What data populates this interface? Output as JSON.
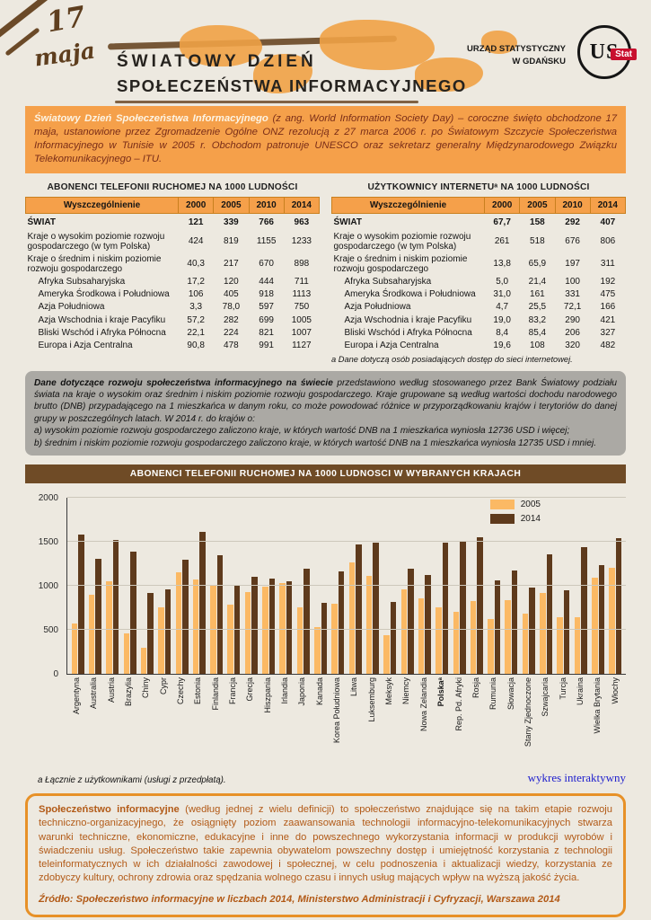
{
  "colors": {
    "accent_orange": "#F5A04A",
    "title_bar_brown": "#6F4B26",
    "bar_2005": "#FBB964",
    "bar_2014": "#5E3A1C",
    "note_gray": "#ABA9A4",
    "footer_text": "#B25A17",
    "footer_border": "#E79128",
    "link_blue": "#2020CD"
  },
  "header": {
    "day": "17",
    "month": "maja",
    "title_line1": "ŚWIATOWY DZIEŃ",
    "title_line2": "SPOŁECZEŃSTWA INFORMACYJNEGO",
    "office_line1": "URZĄD STATYSTYCZNY",
    "office_line2": "W GDAŃSKU",
    "logo_us": "US",
    "logo_stat": "Stat"
  },
  "intro": {
    "lead": "Światowy Dzień Społeczeństwa Informacyjnego",
    "body": "(z ang. World Information Society Day) – coroczne święto obchodzone 17 maja, ustanowione przez Zgromadzenie Ogólne ONZ rezolucją z 27 marca 2006 r. po Światowym Szczycie Społeczeństwa Informacyjnego w Tunisie w 2005 r. Obchodom patronuje UNESCO oraz sekretarz generalny Międzynarodowego Związku Telekomunikacyjnego – ITU."
  },
  "tables": [
    {
      "title": "ABONENCI TELEFONII RUCHOMEJ NA 1000 LUDNOŚCI",
      "columns": [
        "Wyszczególnienie",
        "2000",
        "2005",
        "2010",
        "2014"
      ],
      "rows": [
        {
          "label": "ŚWIAT",
          "bold": true,
          "indent": 0,
          "values": [
            "121",
            "339",
            "766",
            "963"
          ]
        },
        {
          "label": "Kraje o wysokim poziomie rozwoju gospodarczego (w tym Polska)",
          "bold": false,
          "indent": 0,
          "values": [
            "424",
            "819",
            "1155",
            "1233"
          ]
        },
        {
          "label": "Kraje o średnim i niskim poziomie rozwoju gospodarczego",
          "bold": false,
          "indent": 0,
          "values": [
            "40,3",
            "217",
            "670",
            "898"
          ]
        },
        {
          "label": "Afryka Subsaharyjska",
          "bold": false,
          "indent": 1,
          "values": [
            "17,2",
            "120",
            "444",
            "711"
          ]
        },
        {
          "label": "Ameryka Środkowa i Południowa",
          "bold": false,
          "indent": 1,
          "values": [
            "106",
            "405",
            "918",
            "1113"
          ]
        },
        {
          "label": "Azja Południowa",
          "bold": false,
          "indent": 1,
          "values": [
            "3,3",
            "78,0",
            "597",
            "750"
          ]
        },
        {
          "label": "Azja Wschodnia i kraje Pacyfiku",
          "bold": false,
          "indent": 1,
          "values": [
            "57,2",
            "282",
            "699",
            "1005"
          ]
        },
        {
          "label": "Bliski Wschód i Afryka Północna",
          "bold": false,
          "indent": 1,
          "values": [
            "22,1",
            "224",
            "821",
            "1007"
          ]
        },
        {
          "label": "Europa i Azja Centralna",
          "bold": false,
          "indent": 1,
          "values": [
            "90,8",
            "478",
            "991",
            "1127"
          ]
        }
      ],
      "footnote": ""
    },
    {
      "title": "UŻYTKOWNICY INTERNETUᵃ NA 1000 LUDNOŚCI",
      "columns": [
        "Wyszczególnienie",
        "2000",
        "2005",
        "2010",
        "2014"
      ],
      "rows": [
        {
          "label": "ŚWIAT",
          "bold": true,
          "indent": 0,
          "values": [
            "67,7",
            "158",
            "292",
            "407"
          ]
        },
        {
          "label": "Kraje o wysokim poziomie rozwoju gospodarczego (w tym Polska)",
          "bold": false,
          "indent": 0,
          "values": [
            "261",
            "518",
            "676",
            "806"
          ]
        },
        {
          "label": "Kraje o średnim i niskim poziomie rozwoju gospodarczego",
          "bold": false,
          "indent": 0,
          "values": [
            "13,8",
            "65,9",
            "197",
            "311"
          ]
        },
        {
          "label": "Afryka Subsaharyjska",
          "bold": false,
          "indent": 1,
          "values": [
            "5,0",
            "21,4",
            "100",
            "192"
          ]
        },
        {
          "label": "Ameryka Środkowa i Południowa",
          "bold": false,
          "indent": 1,
          "values": [
            "31,0",
            "161",
            "331",
            "475"
          ]
        },
        {
          "label": "Azja Południowa",
          "bold": false,
          "indent": 1,
          "values": [
            "4,7",
            "25,5",
            "72,1",
            "166"
          ]
        },
        {
          "label": "Azja Wschodnia i kraje Pacyfiku",
          "bold": false,
          "indent": 1,
          "values": [
            "19,0",
            "83,2",
            "290",
            "421"
          ]
        },
        {
          "label": "Bliski Wschód i Afryka Północna",
          "bold": false,
          "indent": 1,
          "values": [
            "8,4",
            "85,4",
            "206",
            "327"
          ]
        },
        {
          "label": "Europa i Azja Centralna",
          "bold": false,
          "indent": 1,
          "values": [
            "19,6",
            "108",
            "320",
            "482"
          ]
        }
      ],
      "footnote": "a Dane dotyczą osób posiadających dostęp do sieci internetowej."
    }
  ],
  "note_box": {
    "lead": "Dane dotyczące rozwoju społeczeństwa informacyjnego na świecie",
    "body": "przedstawiono według stosowanego przez Bank Światowy podziału świata na kraje o wysokim oraz średnim i niskim poziomie rozwoju gospodarczego. Kraje grupowane są według wartości dochodu narodowego brutto (DNB) przypadającego na 1 mieszkańca w danym roku, co może powodować różnice w przyporządkowaniu krajów i terytoriów do danej grupy w poszczególnych latach. W 2014 r. do krajów o:",
    "item_a": "a) wysokim poziomie rozwoju gospodarczego zaliczono kraje, w których wartość DNB na 1 mieszkańca wyniosła 12736 USD i więcej;",
    "item_b": "b) średnim i niskim poziomie rozwoju gospodarczego zaliczono kraje, w których wartość DNB na 1 mieszkańca wyniosła 12735 USD i mniej."
  },
  "chart_data": {
    "type": "bar",
    "title": "ABONENCI TELEFONII RUCHOMEJ NA 1000 LUDNOSCI W WYBRANYCH KRAJACH",
    "ylim": [
      0,
      2000
    ],
    "yticks": [
      0,
      500,
      1000,
      1500,
      2000
    ],
    "grid": true,
    "legend_position": "top-right",
    "categories": [
      "Argentyna",
      "Australia",
      "Austria",
      "Brazylia",
      "Chiny",
      "Cypr",
      "Czechy",
      "Estonia",
      "Finlandia",
      "Francja",
      "Grecja",
      "Hiszpania",
      "Irlandia",
      "Japonia",
      "Kanada",
      "Korea Południowa",
      "Litwa",
      "Luksemburg",
      "Meksyk",
      "Niemcy",
      "Nowa Zelandia",
      "Polskaᵃ",
      "Rep. Pd. Afryki",
      "Rosja",
      "Rumunia",
      "Słowacja",
      "Stany Zjednoczone",
      "Szwajcaria",
      "Turcja",
      "Ukraina",
      "Wielka Brytania",
      "Włochy"
    ],
    "bold_categories": [
      "Polskaᵃ"
    ],
    "series": [
      {
        "name": "2005",
        "color": "#FBB964",
        "values": [
          570,
          900,
          1050,
          460,
          300,
          760,
          1150,
          1070,
          1000,
          790,
          930,
          990,
          1030,
          760,
          530,
          800,
          1270,
          1110,
          440,
          960,
          860,
          760,
          710,
          830,
          620,
          840,
          680,
          920,
          640,
          640,
          1090,
          1210
        ]
      },
      {
        "name": "2014",
        "color": "#5E3A1C",
        "values": [
          1580,
          1310,
          1520,
          1390,
          920,
          960,
          1300,
          1610,
          1350,
          1000,
          1100,
          1080,
          1050,
          1200,
          810,
          1160,
          1470,
          1490,
          820,
          1200,
          1120,
          1490,
          1500,
          1550,
          1060,
          1170,
          980,
          1360,
          950,
          1440,
          1240,
          1540
        ]
      }
    ],
    "footnote": "a Łącznie z użytkownikami (usługi z przedpłatą).",
    "link": "wykres interaktywny"
  },
  "footer": {
    "lead": "Społeczeństwo informacyjne",
    "body": "(według jednej z wielu definicji) to społeczeństwo znajdujące się na takim etapie rozwoju techniczno-organizacyjnego, że osiągnięty poziom zaawansowania technologii informacyjno-telekomunikacyjnych stwarza warunki techniczne, ekonomiczne, edukacyjne i inne do powszechnego wykorzystania informacji w produkcji wyrobów i świadczeniu usług. Społeczeństwo takie zapewnia obywatelom powszechny dostęp i umiejętność korzystania z technologii teleinformatycznych w ich działalności zawodowej i społecznej, w celu podnoszenia i aktualizacji wiedzy, korzystania ze zdobyczy kultury, ochrony zdrowia oraz spędzania wolnego czasu i innych usług mających wpływ na wyższą jakość życia.",
    "source": "Źródło: Społeczeństwo informacyjne w liczbach 2014, Ministerstwo Administracji i Cyfryzacji, Warszawa 2014"
  }
}
